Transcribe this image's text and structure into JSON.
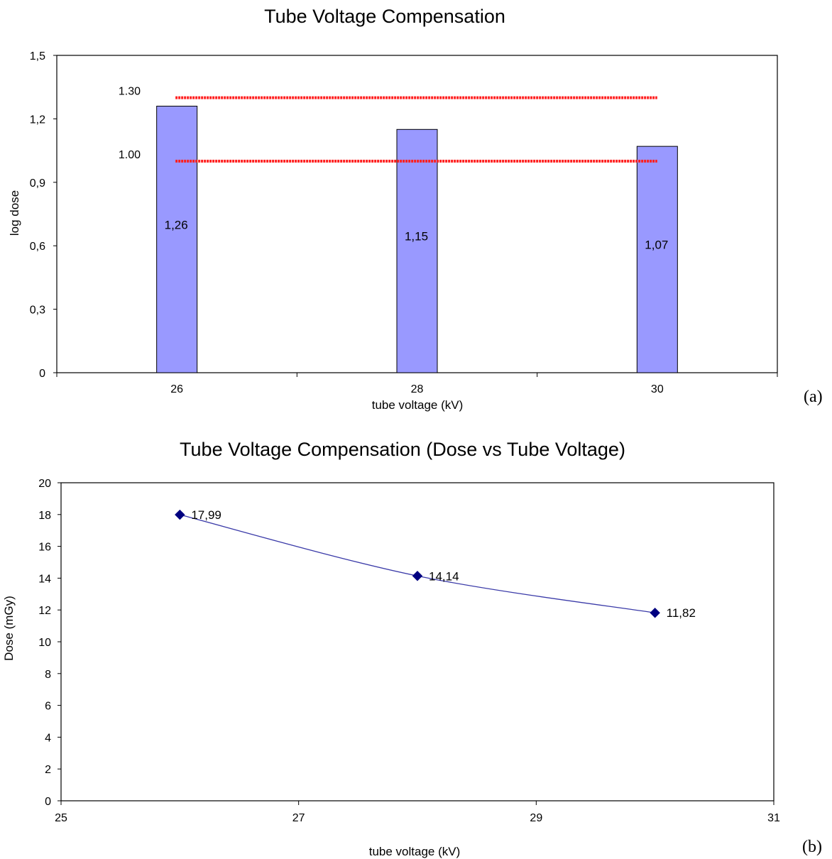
{
  "chart_data": [
    {
      "type": "bar",
      "title": "Tube Voltage Compensation",
      "xlabel": "tube voltage (kV)",
      "ylabel": "log dose",
      "categories": [
        "26",
        "28",
        "30"
      ],
      "values": [
        1.26,
        1.15,
        1.07
      ],
      "value_labels": [
        "1,26",
        "1,15",
        "1,07"
      ],
      "ylim": [
        0,
        1.5
      ],
      "yticks": [
        "0",
        "0,3",
        "0,6",
        "0,9",
        "1,2",
        "1,5"
      ],
      "ytick_values": [
        0,
        0.3,
        0.6,
        0.9,
        1.2,
        1.5
      ],
      "reference_lines": [
        {
          "label": "1.30",
          "value": 1.3
        },
        {
          "label": "1.00",
          "value": 1.0
        }
      ],
      "bar_color": "#9999ff",
      "reference_line_color": "#ff2020",
      "grid": false,
      "panel_label": "(a)"
    },
    {
      "type": "line",
      "title": "Tube Voltage Compensation (Dose vs Tube Voltage)",
      "xlabel": "tube voltage (kV)",
      "ylabel": "Dose (mGy)",
      "x": [
        26,
        28,
        30
      ],
      "values": [
        17.99,
        14.14,
        11.82
      ],
      "value_labels": [
        "17,99",
        "14,14",
        "11,82"
      ],
      "xlim": [
        25,
        31
      ],
      "ylim": [
        0,
        20
      ],
      "xticks": [
        "25",
        "27",
        "29",
        "31"
      ],
      "xtick_values": [
        25,
        27,
        29,
        31
      ],
      "yticks": [
        "0",
        "2",
        "4",
        "6",
        "8",
        "10",
        "12",
        "14",
        "16",
        "18",
        "20"
      ],
      "ytick_values": [
        0,
        2,
        4,
        6,
        8,
        10,
        12,
        14,
        16,
        18,
        20
      ],
      "line_color": "#3a3aa8",
      "marker_color": "#000080",
      "marker": "diamond",
      "grid": false,
      "panel_label": "(b)"
    }
  ]
}
